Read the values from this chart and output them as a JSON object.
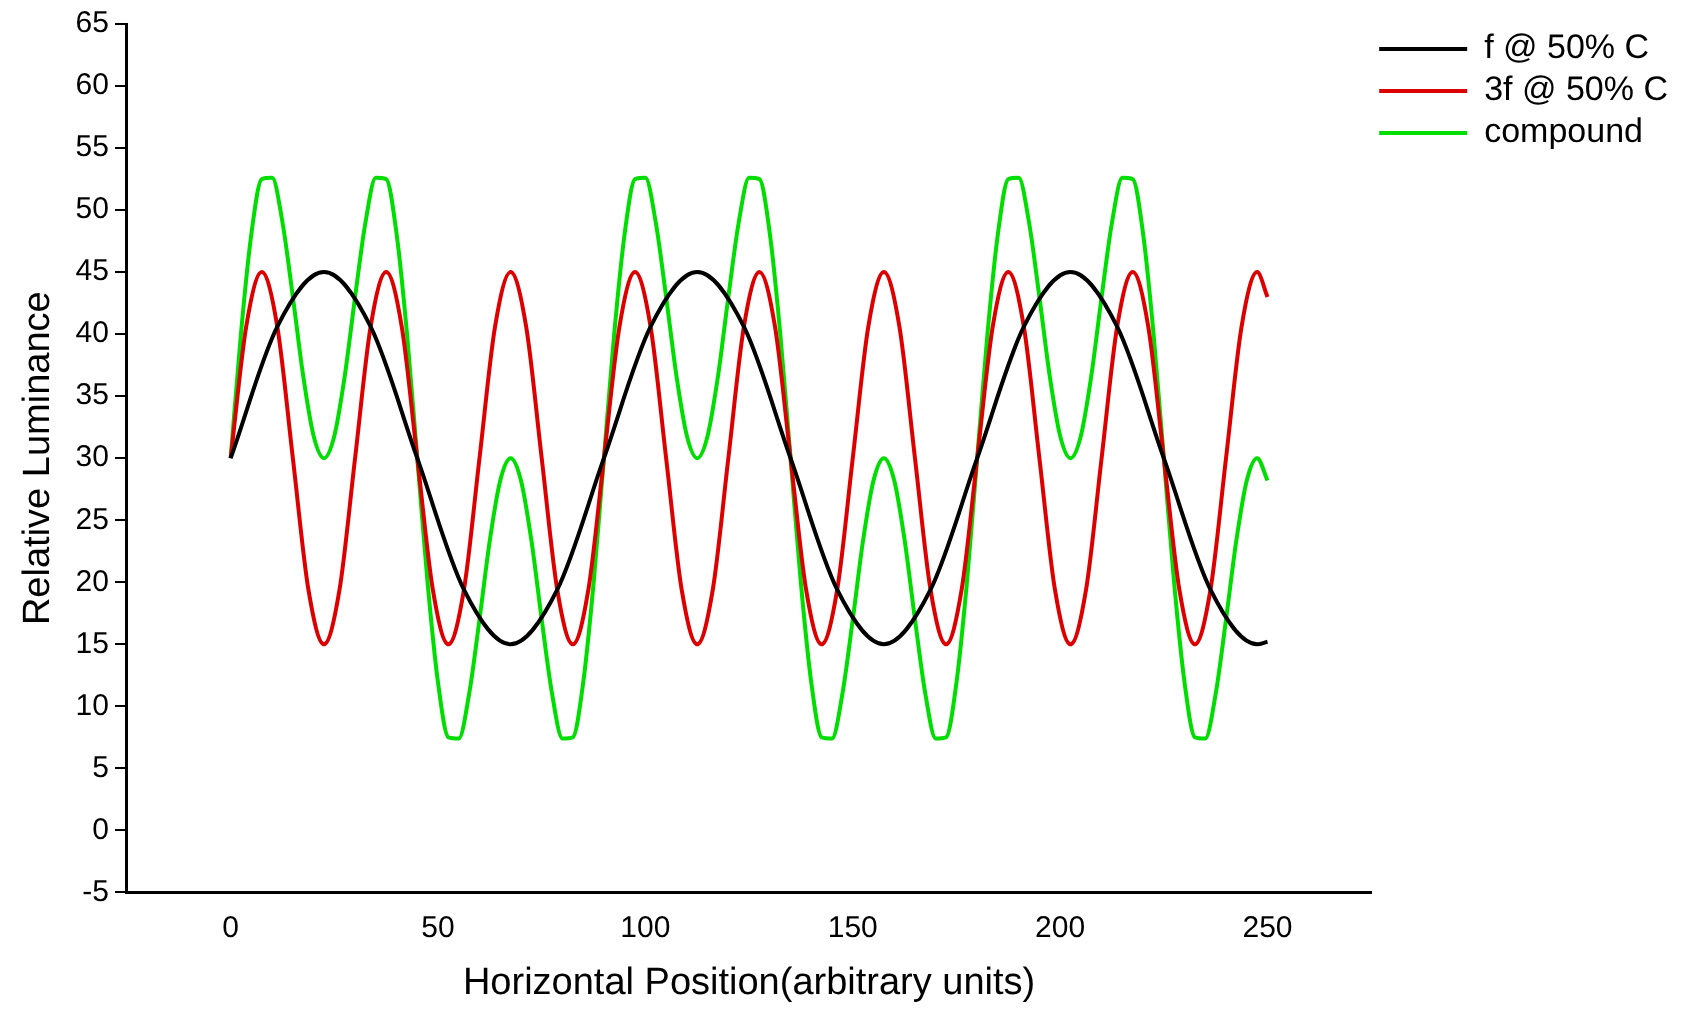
{
  "chart_data": {
    "type": "line",
    "xlabel": "Horizontal Position(arbitrary units)",
    "ylabel": "Relative Luminance",
    "xlim": [
      -25,
      275
    ],
    "xticks": [
      0,
      50,
      100,
      150,
      200,
      250
    ],
    "ylim": [
      -5,
      65
    ],
    "yticks": [
      -5,
      0,
      5,
      10,
      15,
      20,
      25,
      30,
      35,
      40,
      45,
      50,
      55,
      60,
      65
    ],
    "grid": false,
    "legend": "top right",
    "marker": "none",
    "line_style": "solid",
    "series": [
      {
        "name": "f @ 50% C",
        "color": "#000000",
        "x": [
          0,
          11.25,
          22.5,
          33.75,
          45,
          56.25,
          67.5,
          78.75,
          90,
          101.25,
          112.5,
          123.75,
          135,
          146.25,
          157.5,
          168.75,
          180,
          191.25,
          202.5,
          213.75,
          225,
          236.25,
          247.5,
          250
        ],
        "values": [
          30,
          40.6,
          45,
          40.6,
          30,
          19.4,
          15,
          19.4,
          30,
          40.6,
          45,
          40.6,
          30,
          19.4,
          15,
          19.4,
          30,
          40.6,
          45,
          40.6,
          30,
          19.4,
          15,
          15.2
        ]
      },
      {
        "name": "3f @ 50% C",
        "color": "#dd0000",
        "x": [
          0,
          3.75,
          7.5,
          11.25,
          15,
          18.75,
          22.5,
          26.25,
          30,
          33.75,
          37.5,
          41.25,
          45,
          48.75,
          52.5,
          56.25,
          60,
          63.75,
          67.5,
          71.25,
          75,
          78.75,
          82.5,
          86.25,
          90,
          93.75,
          97.5,
          101.25,
          105,
          108.75,
          112.5,
          116.25,
          120,
          123.75,
          127.5,
          131.25,
          135,
          138.75,
          142.5,
          146.25,
          150,
          153.75,
          157.5,
          161.25,
          165,
          168.75,
          172.5,
          176.25,
          180,
          183.75,
          187.5,
          191.25,
          195,
          198.75,
          202.5,
          206.25,
          210,
          213.75,
          217.5,
          221.25,
          225,
          228.75,
          232.5,
          236.25,
          240,
          243.75,
          247.5,
          250
        ],
        "values": [
          30,
          40.6,
          45,
          40.6,
          30,
          19.4,
          15,
          19.4,
          30,
          40.6,
          45,
          40.6,
          30,
          19.4,
          15,
          19.4,
          30,
          40.6,
          45,
          40.6,
          30,
          19.4,
          15,
          19.4,
          30,
          40.6,
          45,
          40.6,
          30,
          19.4,
          15,
          19.4,
          30,
          40.6,
          45,
          40.6,
          30,
          19.4,
          15,
          19.4,
          30,
          40.6,
          45,
          40.6,
          30,
          19.4,
          15,
          19.4,
          30,
          40.6,
          45,
          40.6,
          30,
          19.4,
          15,
          19.4,
          30,
          40.6,
          45,
          40.6,
          30,
          19.4,
          15,
          19.4,
          30,
          40.6,
          45,
          43.0
        ]
      },
      {
        "name": "compound",
        "color": "#00dd00",
        "x": [
          0,
          2.5,
          5,
          7.5,
          10,
          12.5,
          15,
          17.5,
          20,
          22.5,
          25,
          27.5,
          30,
          32.5,
          35,
          37.5,
          40,
          42.5,
          45,
          47.5,
          50,
          52.5,
          55,
          57.5,
          60,
          62.5,
          65,
          67.5,
          70,
          72.5,
          75,
          77.5,
          80,
          82.5,
          85,
          87.5,
          90,
          92.5,
          95,
          97.5,
          100,
          102.5,
          105,
          107.5,
          110,
          112.5,
          115,
          117.5,
          120,
          122.5,
          125,
          127.5,
          130,
          132.5,
          135,
          137.5,
          140,
          142.5,
          145,
          147.5,
          150,
          152.5,
          155,
          157.5,
          160,
          162.5,
          165,
          167.5,
          170,
          172.5,
          175,
          177.5,
          180,
          182.5,
          185,
          187.5,
          190,
          192.5,
          195,
          197.5,
          200,
          202.5,
          205,
          207.5,
          210,
          212.5,
          215,
          217.5,
          220,
          222.5,
          225,
          227.5,
          230,
          232.5,
          235,
          237.5,
          240,
          242.5,
          245,
          247.5,
          250
        ],
        "values": [
          30,
          40.1,
          48.1,
          52.5,
          52.6,
          49.0,
          43.0,
          36.6,
          31.8,
          30,
          31.8,
          36.6,
          43.0,
          49.0,
          52.6,
          52.5,
          48.1,
          40.1,
          30,
          19.9,
          11.9,
          7.5,
          7.4,
          11.0,
          17.0,
          23.4,
          28.2,
          30,
          28.2,
          23.4,
          17.0,
          11.0,
          7.4,
          7.5,
          11.9,
          19.9,
          30,
          40.1,
          48.1,
          52.5,
          52.6,
          49.0,
          43.0,
          36.6,
          31.8,
          30,
          31.8,
          36.6,
          43.0,
          49.0,
          52.6,
          52.5,
          48.1,
          40.1,
          30,
          19.9,
          11.9,
          7.5,
          7.4,
          11.0,
          17.0,
          23.4,
          28.2,
          30,
          28.2,
          23.4,
          17.0,
          11.0,
          7.4,
          7.5,
          11.9,
          19.9,
          30,
          40.1,
          48.1,
          52.5,
          52.6,
          49.0,
          43.0,
          36.6,
          31.8,
          30,
          31.8,
          36.6,
          43.0,
          49.0,
          52.6,
          52.5,
          48.1,
          40.1,
          30,
          19.9,
          11.9,
          7.5,
          7.4,
          11.0,
          17.0,
          23.4,
          28.2,
          30,
          28.2
        ]
      }
    ]
  }
}
